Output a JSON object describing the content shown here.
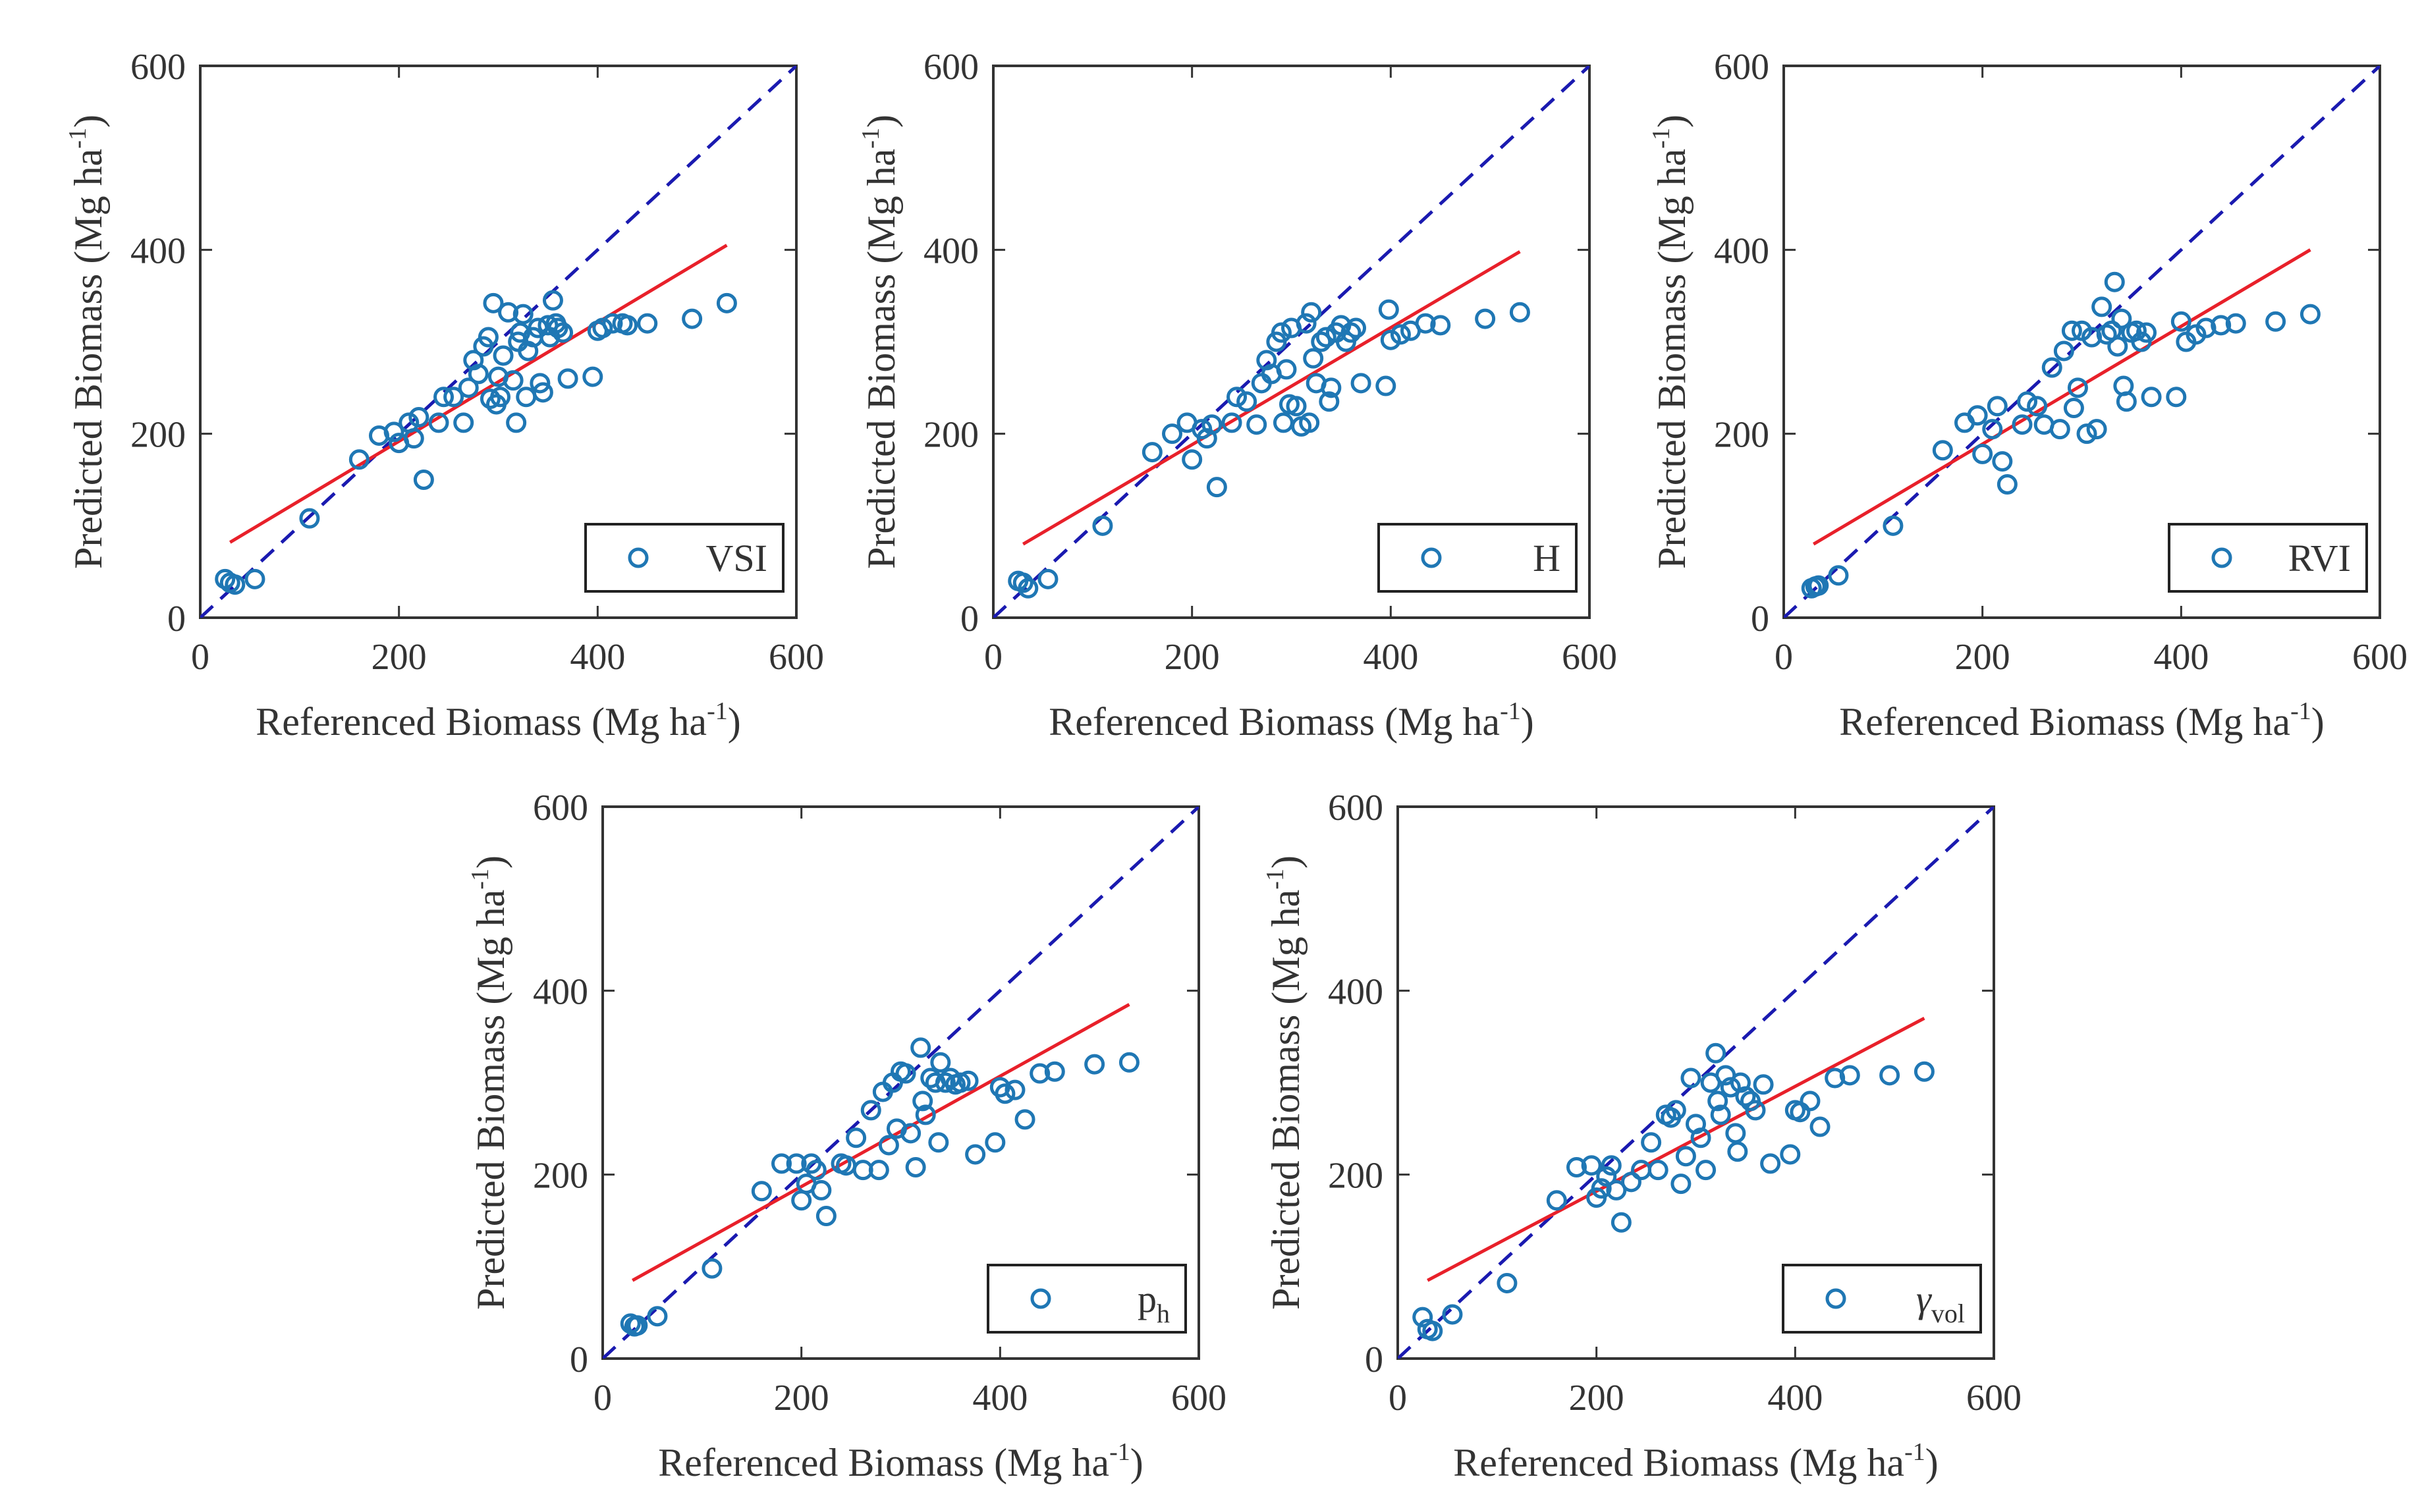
{
  "colors": {
    "marker": "#1f77b4",
    "fit_line": "#e8202a",
    "identity_line": "#1a1ab0",
    "axis": "#333333",
    "legend_border": "#222222"
  },
  "chart_data": [
    {
      "type": "scatter",
      "legend": {
        "main": "VSI",
        "sub": "",
        "italic_greek": false,
        "placement": "bottom-right"
      },
      "xlabel": {
        "text": "Referenced Biomass (Mg ha",
        "sup": "-1",
        "close": ")"
      },
      "ylabel": {
        "text": "Predicted Biomass (Mg ha",
        "sup": "-1",
        "close": ")"
      },
      "xlim": [
        0,
        600
      ],
      "ylim": [
        0,
        600
      ],
      "xticks": [
        "0",
        "200",
        "400",
        "600"
      ],
      "yticks": [
        "0",
        "200",
        "400",
        "600"
      ],
      "identity_line": {
        "x": [
          0,
          600
        ],
        "y": [
          0,
          600
        ]
      },
      "fit_line": {
        "x": [
          30,
          530
        ],
        "y": [
          82,
          405
        ]
      },
      "points": [
        [
          25,
          42
        ],
        [
          30,
          38
        ],
        [
          35,
          36
        ],
        [
          55,
          42
        ],
        [
          110,
          108
        ],
        [
          160,
          172
        ],
        [
          180,
          198
        ],
        [
          195,
          202
        ],
        [
          200,
          190
        ],
        [
          210,
          212
        ],
        [
          215,
          195
        ],
        [
          220,
          218
        ],
        [
          225,
          150
        ],
        [
          240,
          212
        ],
        [
          245,
          240
        ],
        [
          255,
          240
        ],
        [
          265,
          212
        ],
        [
          270,
          250
        ],
        [
          275,
          280
        ],
        [
          280,
          265
        ],
        [
          285,
          295
        ],
        [
          290,
          305
        ],
        [
          292,
          238
        ],
        [
          295,
          342
        ],
        [
          298,
          232
        ],
        [
          300,
          262
        ],
        [
          302,
          240
        ],
        [
          305,
          285
        ],
        [
          310,
          332
        ],
        [
          315,
          258
        ],
        [
          318,
          212
        ],
        [
          320,
          300
        ],
        [
          322,
          310
        ],
        [
          325,
          330
        ],
        [
          328,
          240
        ],
        [
          330,
          290
        ],
        [
          335,
          305
        ],
        [
          340,
          315
        ],
        [
          342,
          255
        ],
        [
          345,
          245
        ],
        [
          350,
          318
        ],
        [
          352,
          305
        ],
        [
          355,
          345
        ],
        [
          358,
          320
        ],
        [
          360,
          315
        ],
        [
          365,
          310
        ],
        [
          370,
          260
        ],
        [
          395,
          262
        ],
        [
          400,
          312
        ],
        [
          405,
          315
        ],
        [
          415,
          320
        ],
        [
          425,
          320
        ],
        [
          430,
          318
        ],
        [
          450,
          320
        ],
        [
          495,
          325
        ],
        [
          530,
          342
        ]
      ]
    },
    {
      "type": "scatter",
      "legend": {
        "main": "H",
        "sub": "",
        "italic_greek": false,
        "placement": "bottom-right"
      },
      "xlabel": {
        "text": "Referenced Biomass (Mg ha",
        "sup": "-1",
        "close": ")"
      },
      "ylabel": {
        "text": "Predicted Biomass (Mg ha",
        "sup": "-1",
        "close": ")"
      },
      "xlim": [
        0,
        600
      ],
      "ylim": [
        0,
        600
      ],
      "xticks": [
        "0",
        "200",
        "400",
        "600"
      ],
      "yticks": [
        "0",
        "200",
        "400",
        "600"
      ],
      "identity_line": {
        "x": [
          0,
          600
        ],
        "y": [
          0,
          600
        ]
      },
      "fit_line": {
        "x": [
          30,
          530
        ],
        "y": [
          80,
          398
        ]
      },
      "points": [
        [
          25,
          40
        ],
        [
          30,
          38
        ],
        [
          35,
          32
        ],
        [
          55,
          42
        ],
        [
          110,
          100
        ],
        [
          160,
          180
        ],
        [
          180,
          200
        ],
        [
          195,
          212
        ],
        [
          200,
          172
        ],
        [
          210,
          205
        ],
        [
          215,
          195
        ],
        [
          220,
          210
        ],
        [
          225,
          142
        ],
        [
          240,
          212
        ],
        [
          245,
          240
        ],
        [
          255,
          235
        ],
        [
          265,
          210
        ],
        [
          270,
          255
        ],
        [
          275,
          280
        ],
        [
          280,
          265
        ],
        [
          285,
          300
        ],
        [
          290,
          310
        ],
        [
          292,
          212
        ],
        [
          295,
          270
        ],
        [
          298,
          232
        ],
        [
          300,
          315
        ],
        [
          305,
          230
        ],
        [
          310,
          208
        ],
        [
          315,
          320
        ],
        [
          318,
          212
        ],
        [
          320,
          332
        ],
        [
          322,
          282
        ],
        [
          325,
          255
        ],
        [
          330,
          300
        ],
        [
          335,
          305
        ],
        [
          338,
          235
        ],
        [
          340,
          250
        ],
        [
          345,
          310
        ],
        [
          350,
          318
        ],
        [
          355,
          300
        ],
        [
          360,
          310
        ],
        [
          365,
          315
        ],
        [
          370,
          255
        ],
        [
          395,
          252
        ],
        [
          398,
          335
        ],
        [
          400,
          302
        ],
        [
          410,
          308
        ],
        [
          420,
          312
        ],
        [
          435,
          320
        ],
        [
          450,
          318
        ],
        [
          495,
          325
        ],
        [
          530,
          332
        ]
      ]
    },
    {
      "type": "scatter",
      "legend": {
        "main": "RVI",
        "sub": "",
        "italic_greek": false,
        "placement": "bottom-right"
      },
      "xlabel": {
        "text": "Referenced Biomass (Mg ha",
        "sup": "-1",
        "close": ")"
      },
      "ylabel": {
        "text": "Predicted Biomass (Mg ha",
        "sup": "-1",
        "close": ")"
      },
      "xlim": [
        0,
        600
      ],
      "ylim": [
        0,
        600
      ],
      "xticks": [
        "0",
        "200",
        "400",
        "600"
      ],
      "yticks": [
        "0",
        "200",
        "400",
        "600"
      ],
      "identity_line": {
        "x": [
          0,
          600
        ],
        "y": [
          0,
          600
        ]
      },
      "fit_line": {
        "x": [
          30,
          530
        ],
        "y": [
          80,
          400
        ]
      },
      "points": [
        [
          28,
          32
        ],
        [
          32,
          34
        ],
        [
          35,
          35
        ],
        [
          55,
          46
        ],
        [
          110,
          100
        ],
        [
          160,
          182
        ],
        [
          182,
          212
        ],
        [
          195,
          220
        ],
        [
          200,
          178
        ],
        [
          210,
          205
        ],
        [
          215,
          230
        ],
        [
          220,
          170
        ],
        [
          225,
          145
        ],
        [
          240,
          210
        ],
        [
          245,
          235
        ],
        [
          255,
          230
        ],
        [
          262,
          210
        ],
        [
          270,
          272
        ],
        [
          278,
          205
        ],
        [
          282,
          290
        ],
        [
          290,
          312
        ],
        [
          292,
          228
        ],
        [
          296,
          250
        ],
        [
          300,
          312
        ],
        [
          305,
          200
        ],
        [
          310,
          305
        ],
        [
          315,
          205
        ],
        [
          320,
          338
        ],
        [
          325,
          308
        ],
        [
          330,
          312
        ],
        [
          333,
          365
        ],
        [
          336,
          295
        ],
        [
          340,
          325
        ],
        [
          342,
          252
        ],
        [
          345,
          235
        ],
        [
          350,
          310
        ],
        [
          355,
          312
        ],
        [
          360,
          300
        ],
        [
          365,
          310
        ],
        [
          370,
          240
        ],
        [
          395,
          240
        ],
        [
          400,
          322
        ],
        [
          405,
          300
        ],
        [
          415,
          308
        ],
        [
          425,
          315
        ],
        [
          440,
          318
        ],
        [
          455,
          320
        ],
        [
          495,
          322
        ],
        [
          530,
          330
        ]
      ]
    },
    {
      "type": "scatter",
      "legend": {
        "main": "p",
        "sub": "h",
        "italic_greek": false,
        "placement": "bottom-right"
      },
      "xlabel": {
        "text": "Referenced Biomass (Mg ha",
        "sup": "-1",
        "close": ")"
      },
      "ylabel": {
        "text": "Predicted Biomass (Mg ha",
        "sup": "-1",
        "close": ")"
      },
      "xlim": [
        0,
        600
      ],
      "ylim": [
        0,
        600
      ],
      "xticks": [
        "0",
        "200",
        "400",
        "600"
      ],
      "yticks": [
        "0",
        "200",
        "400",
        "600"
      ],
      "identity_line": {
        "x": [
          0,
          600
        ],
        "y": [
          0,
          600
        ]
      },
      "fit_line": {
        "x": [
          30,
          530
        ],
        "y": [
          85,
          385
        ]
      },
      "points": [
        [
          28,
          38
        ],
        [
          32,
          35
        ],
        [
          35,
          36
        ],
        [
          55,
          46
        ],
        [
          110,
          98
        ],
        [
          160,
          182
        ],
        [
          180,
          212
        ],
        [
          195,
          212
        ],
        [
          200,
          172
        ],
        [
          205,
          190
        ],
        [
          210,
          212
        ],
        [
          215,
          205
        ],
        [
          220,
          183
        ],
        [
          225,
          155
        ],
        [
          240,
          212
        ],
        [
          245,
          210
        ],
        [
          255,
          240
        ],
        [
          262,
          205
        ],
        [
          270,
          270
        ],
        [
          278,
          205
        ],
        [
          282,
          290
        ],
        [
          288,
          232
        ],
        [
          292,
          300
        ],
        [
          296,
          250
        ],
        [
          300,
          312
        ],
        [
          305,
          310
        ],
        [
          310,
          245
        ],
        [
          315,
          208
        ],
        [
          320,
          338
        ],
        [
          322,
          280
        ],
        [
          325,
          265
        ],
        [
          330,
          305
        ],
        [
          335,
          300
        ],
        [
          338,
          235
        ],
        [
          340,
          322
        ],
        [
          345,
          300
        ],
        [
          350,
          305
        ],
        [
          355,
          298
        ],
        [
          360,
          300
        ],
        [
          368,
          302
        ],
        [
          375,
          222
        ],
        [
          395,
          235
        ],
        [
          400,
          295
        ],
        [
          405,
          288
        ],
        [
          415,
          292
        ],
        [
          425,
          260
        ],
        [
          440,
          310
        ],
        [
          455,
          312
        ],
        [
          495,
          320
        ],
        [
          530,
          322
        ]
      ]
    },
    {
      "type": "scatter",
      "legend": {
        "main": "γ",
        "sub": "vol",
        "italic_greek": true,
        "placement": "bottom-right"
      },
      "xlabel": {
        "text": "Referenced Biomass (Mg ha",
        "sup": "-1",
        "close": ")"
      },
      "ylabel": {
        "text": "Predicted Biomass (Mg ha",
        "sup": "-1",
        "close": ")"
      },
      "xlim": [
        0,
        600
      ],
      "ylim": [
        0,
        600
      ],
      "xticks": [
        "0",
        "200",
        "400",
        "600"
      ],
      "yticks": [
        "0",
        "200",
        "400",
        "600"
      ],
      "identity_line": {
        "x": [
          0,
          600
        ],
        "y": [
          0,
          600
        ]
      },
      "fit_line": {
        "x": [
          30,
          530
        ],
        "y": [
          85,
          370
        ]
      },
      "points": [
        [
          25,
          45
        ],
        [
          30,
          32
        ],
        [
          35,
          30
        ],
        [
          55,
          48
        ],
        [
          110,
          82
        ],
        [
          160,
          172
        ],
        [
          180,
          208
        ],
        [
          195,
          210
        ],
        [
          200,
          175
        ],
        [
          205,
          185
        ],
        [
          210,
          198
        ],
        [
          215,
          210
        ],
        [
          220,
          183
        ],
        [
          225,
          148
        ],
        [
          235,
          192
        ],
        [
          245,
          205
        ],
        [
          255,
          235
        ],
        [
          262,
          205
        ],
        [
          270,
          265
        ],
        [
          275,
          262
        ],
        [
          280,
          270
        ],
        [
          285,
          190
        ],
        [
          290,
          220
        ],
        [
          295,
          305
        ],
        [
          300,
          255
        ],
        [
          305,
          240
        ],
        [
          310,
          205
        ],
        [
          315,
          300
        ],
        [
          320,
          332
        ],
        [
          322,
          280
        ],
        [
          325,
          265
        ],
        [
          330,
          308
        ],
        [
          335,
          295
        ],
        [
          340,
          245
        ],
        [
          342,
          225
        ],
        [
          345,
          300
        ],
        [
          350,
          285
        ],
        [
          355,
          280
        ],
        [
          360,
          270
        ],
        [
          368,
          298
        ],
        [
          375,
          212
        ],
        [
          395,
          222
        ],
        [
          400,
          270
        ],
        [
          405,
          268
        ],
        [
          415,
          280
        ],
        [
          425,
          252
        ],
        [
          440,
          305
        ],
        [
          455,
          308
        ],
        [
          495,
          308
        ],
        [
          530,
          312
        ]
      ]
    }
  ]
}
